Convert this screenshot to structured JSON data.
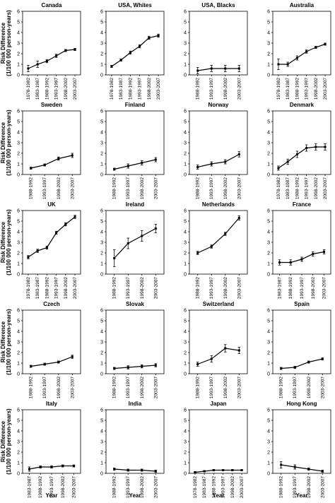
{
  "chart_data": [
    {
      "type": "line",
      "title": "Canada",
      "ylabel": [
        "Risk Difference",
        "(1/100 000 person-years)"
      ],
      "categories": [
        "1978-1982",
        "1983-1987",
        "1988-1992",
        "1993-1997",
        "1998-2002",
        "2003-2007"
      ],
      "values": [
        0.6,
        1.0,
        1.3,
        1.8,
        2.3,
        2.4
      ],
      "errors": [
        0.3,
        0.3,
        0.15,
        0.15,
        0.1,
        0.1
      ],
      "ylim": [
        0,
        6
      ],
      "yticks": [
        0,
        1,
        2,
        3,
        4,
        5,
        6
      ],
      "color": "#000000"
    },
    {
      "type": "line",
      "title": "USA, Whites",
      "categories": [
        "1978-1982",
        "1983-1987",
        "1988-1992",
        "1993-1997",
        "1998-2002",
        "2003-2007"
      ],
      "values": [
        0.8,
        1.4,
        2.1,
        2.7,
        3.5,
        3.7
      ],
      "errors": [
        0.1,
        0.1,
        0.15,
        0.15,
        0.15,
        0.15
      ],
      "ylim": [
        0,
        6
      ],
      "yticks": [
        0,
        1,
        2,
        3,
        4,
        5,
        6
      ],
      "color": "#000000"
    },
    {
      "type": "line",
      "title": "USA, Blacks",
      "categories": [
        "1988-1992",
        "1993-1997",
        "1998-2002",
        "2003-2007"
      ],
      "values": [
        0.4,
        0.6,
        0.6,
        0.6
      ],
      "errors": [
        0.3,
        0.3,
        0.3,
        0.3
      ],
      "ylim": [
        0,
        6
      ],
      "yticks": [
        0,
        1,
        2,
        3,
        4,
        5,
        6
      ],
      "color": "#000000"
    },
    {
      "type": "line",
      "title": "Australia",
      "categories": [
        "1978-1982",
        "1983-1987",
        "1988-1992",
        "1993-1997",
        "1998-2002",
        "2003-2007"
      ],
      "values": [
        1.0,
        1.0,
        1.6,
        2.2,
        2.6,
        2.9
      ],
      "errors": [
        0.5,
        0.2,
        0.2,
        0.15,
        0.1,
        0.1
      ],
      "ylim": [
        0,
        6
      ],
      "yticks": [
        0,
        1,
        2,
        3,
        4,
        5,
        6
      ],
      "color": "#000000"
    },
    {
      "type": "line",
      "title": "Sweden",
      "ylabel": [
        "Risk Difference",
        "(1/100 000 person-years)"
      ],
      "categories": [
        "1988-1992",
        "1993-1997",
        "1998-2002",
        "2003-2007"
      ],
      "values": [
        0.6,
        0.9,
        1.5,
        1.8
      ],
      "errors": [
        0.1,
        0.1,
        0.15,
        0.2
      ],
      "ylim": [
        0,
        6
      ],
      "yticks": [
        0,
        1,
        2,
        3,
        4,
        5,
        6
      ],
      "color": "#000000"
    },
    {
      "type": "line",
      "title": "Finland",
      "categories": [
        "1988-1992",
        "1993-1997",
        "1998-2002",
        "2003-2007"
      ],
      "values": [
        0.5,
        0.8,
        1.1,
        1.4
      ],
      "errors": [
        0.1,
        0.2,
        0.2,
        0.2
      ],
      "ylim": [
        0,
        6
      ],
      "yticks": [
        0,
        1,
        2,
        3,
        4,
        5,
        6
      ],
      "color": "#000000"
    },
    {
      "type": "line",
      "title": "Norway",
      "categories": [
        "1988-1992",
        "1993-1997",
        "1998-2002",
        "2003-2007"
      ],
      "values": [
        0.7,
        1.0,
        1.2,
        1.9
      ],
      "errors": [
        0.2,
        0.2,
        0.2,
        0.25
      ],
      "ylim": [
        0,
        6
      ],
      "yticks": [
        0,
        1,
        2,
        3,
        4,
        5,
        6
      ],
      "color": "#000000"
    },
    {
      "type": "line",
      "title": "Denmark",
      "categories": [
        "1978-1982",
        "1983-1987",
        "1988-1992",
        "1993-1997",
        "1998-2002",
        "2003-2007"
      ],
      "values": [
        0.6,
        1.2,
        1.9,
        2.5,
        2.6,
        2.6
      ],
      "errors": [
        0.2,
        0.25,
        0.3,
        0.3,
        0.3,
        0.3
      ],
      "ylim": [
        0,
        6
      ],
      "yticks": [
        0,
        1,
        2,
        3,
        4,
        5,
        6
      ],
      "color": "#000000"
    },
    {
      "type": "line",
      "title": "UK",
      "ylabel": [
        "Risk Difference",
        "(1/100 000 person-years)"
      ],
      "categories": [
        "1978-1982",
        "1983-1987",
        "1988-1992",
        "1993-1997",
        "1998-2002",
        "2003-2007"
      ],
      "values": [
        1.6,
        2.2,
        2.5,
        3.9,
        4.7,
        5.4
      ],
      "errors": [
        0.15,
        0.15,
        0.15,
        0.15,
        0.15,
        0.15
      ],
      "ylim": [
        0,
        6
      ],
      "yticks": [
        0,
        1,
        2,
        3,
        4,
        5,
        6
      ],
      "color": "#000000"
    },
    {
      "type": "line",
      "title": "Ireland",
      "categories": [
        "1988-1992",
        "1993-1997",
        "1998-2002",
        "2003-2007"
      ],
      "values": [
        1.5,
        2.9,
        3.6,
        4.3
      ],
      "errors": [
        0.8,
        0.5,
        0.5,
        0.4
      ],
      "ylim": [
        0,
        6
      ],
      "yticks": [
        0,
        1,
        2,
        3,
        4,
        5,
        6
      ],
      "color": "#000000"
    },
    {
      "type": "line",
      "title": "Netherlands",
      "categories": [
        "1988-1992",
        "1993-1997",
        "1998-2002",
        "2003-2007"
      ],
      "values": [
        2.0,
        2.6,
        3.8,
        5.3
      ],
      "errors": [
        0.15,
        0.15,
        0.15,
        0.2
      ],
      "ylim": [
        0,
        6
      ],
      "yticks": [
        0,
        1,
        2,
        3,
        4,
        5,
        6
      ],
      "color": "#000000"
    },
    {
      "type": "line",
      "title": "France",
      "categories": [
        "1983-1987",
        "1988-1992",
        "1993-1997",
        "1998-2002",
        "2003-2007"
      ],
      "values": [
        1.1,
        1.1,
        1.4,
        1.9,
        2.1
      ],
      "errors": [
        0.25,
        0.25,
        0.2,
        0.2,
        0.2
      ],
      "ylim": [
        0,
        6
      ],
      "yticks": [
        0,
        1,
        2,
        3,
        4,
        5,
        6
      ],
      "color": "#000000"
    },
    {
      "type": "line",
      "title": "Czech",
      "ylabel": [
        "Risk Difference",
        "(1/100 000 person-years)"
      ],
      "categories": [
        "1988-1992",
        "1993-1997",
        "1998-2002",
        "2003-2007"
      ],
      "values": [
        0.7,
        0.9,
        1.1,
        1.6
      ],
      "errors": [
        0.1,
        0.1,
        0.1,
        0.15
      ],
      "ylim": [
        0,
        6
      ],
      "yticks": [
        0,
        1,
        2,
        3,
        4,
        5,
        6
      ],
      "color": "#000000"
    },
    {
      "type": "line",
      "title": "Slovak",
      "categories": [
        "1988-1992",
        "1993-1997",
        "1998-2002",
        "2003-2007"
      ],
      "values": [
        0.5,
        0.6,
        0.7,
        0.8
      ],
      "errors": [
        0.1,
        0.15,
        0.15,
        0.15
      ],
      "ylim": [
        0,
        6
      ],
      "yticks": [
        0,
        1,
        2,
        3,
        4,
        5,
        6
      ],
      "color": "#000000"
    },
    {
      "type": "line",
      "title": "Switzerland",
      "categories": [
        "1988-1992",
        "1993-1997",
        "1998-2002",
        "2003-2007"
      ],
      "values": [
        0.9,
        1.4,
        2.4,
        2.2
      ],
      "errors": [
        0.2,
        0.3,
        0.35,
        0.3
      ],
      "ylim": [
        0,
        6
      ],
      "yticks": [
        0,
        1,
        2,
        3,
        4,
        5,
        6
      ],
      "color": "#000000"
    },
    {
      "type": "line",
      "title": "Spain",
      "categories": [
        "1988-1992",
        "1993-1997",
        "1998-2002",
        "2003-2007"
      ],
      "values": [
        0.5,
        0.6,
        1.1,
        1.4
      ],
      "errors": [
        0.1,
        0.1,
        0.1,
        0.1
      ],
      "ylim": [
        0,
        6
      ],
      "yticks": [
        0,
        1,
        2,
        3,
        4,
        5,
        6
      ],
      "color": "#000000"
    },
    {
      "type": "line",
      "title": "Italy",
      "ylabel": [
        "Risk Difference",
        "(1/100 000 person-years)"
      ],
      "xlabel": "Year",
      "categories": [
        "1983-1987",
        "1988-1992",
        "1993-1997",
        "1998-2002",
        "2003-2007"
      ],
      "values": [
        0.4,
        0.6,
        0.6,
        0.7,
        0.7
      ],
      "errors": [
        0.2,
        0.1,
        0.1,
        0.1,
        0.1
      ],
      "ylim": [
        0,
        6
      ],
      "yticks": [
        0,
        1,
        2,
        3,
        4,
        5,
        6
      ],
      "color": "#000000"
    },
    {
      "type": "line",
      "title": "India",
      "xlabel": "Year",
      "categories": [
        "1988-1992",
        "1993-1997",
        "1998-2002",
        "2003-2007"
      ],
      "values": [
        0.4,
        0.3,
        0.3,
        0.2
      ],
      "errors": [
        0.1,
        0.1,
        0.1,
        0.1
      ],
      "ylim": [
        0,
        6
      ],
      "yticks": [
        0,
        1,
        2,
        3,
        4,
        5,
        6
      ],
      "color": "#000000"
    },
    {
      "type": "line",
      "title": "Japan",
      "xlabel": "Year",
      "categories": [
        "1978-1982",
        "1983-1987",
        "1988-1992",
        "1993-1997",
        "1998-2002",
        "2003-2007"
      ],
      "values": [
        0.1,
        0.2,
        0.3,
        0.3,
        0.3,
        0.3
      ],
      "errors": [
        0.05,
        0.05,
        0.05,
        0.05,
        0.05,
        0.05
      ],
      "ylim": [
        0,
        6
      ],
      "yticks": [
        0,
        1,
        2,
        3,
        4,
        5,
        6
      ],
      "color": "#000000"
    },
    {
      "type": "line",
      "title": "Hong Kong",
      "xlabel": "Year",
      "categories": [
        "1988-1992",
        "1993-1997",
        "1998-2002",
        "2003-2007"
      ],
      "values": [
        0.8,
        0.6,
        0.4,
        0.2
      ],
      "errors": [
        0.3,
        0.2,
        0.1,
        0.1
      ],
      "ylim": [
        0,
        6
      ],
      "yticks": [
        0,
        1,
        2,
        3,
        4,
        5,
        6
      ],
      "color": "#000000"
    }
  ]
}
